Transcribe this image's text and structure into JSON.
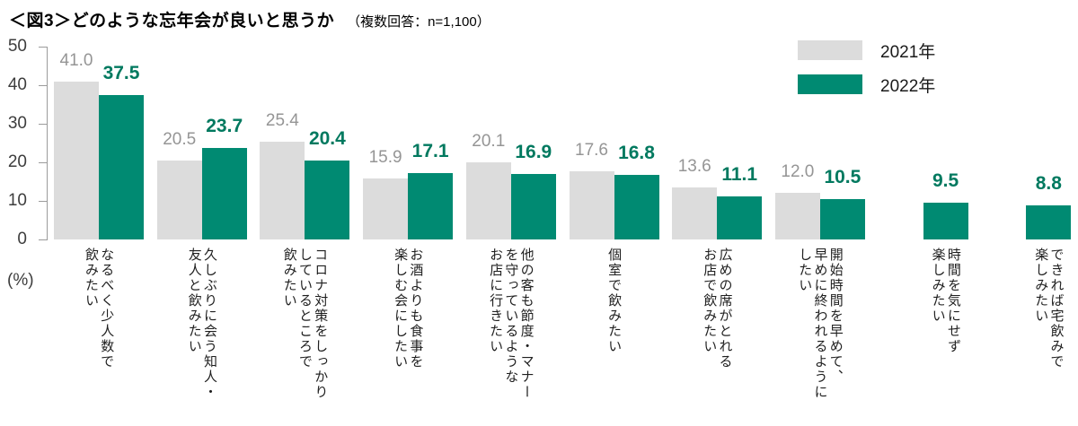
{
  "title": "＜図3＞どのような忘年会が良いと思うか",
  "subtitle": "（複数回答：n=1,100）",
  "legend": [
    {
      "label": "2021年",
      "color": "#dcdcdc"
    },
    {
      "label": "2022年",
      "color": "#008a72"
    }
  ],
  "axis": {
    "unit_label": "(%)",
    "ticks": [
      0,
      10,
      20,
      30,
      40,
      50
    ]
  },
  "chart_data": {
    "type": "bar",
    "title": "＜図3＞どのような忘年会が良いと思うか（複数回答：n=1,100）",
    "xlabel": "",
    "ylabel": "(%)",
    "ylim": [
      0,
      50
    ],
    "grid": false,
    "legend_position": "top-right",
    "categories": [
      "なるべく少人数で\n飲みたい",
      "久しぶりに会う知人・\n友人と飲みたい",
      "コロナ対策をしっかり\nしているところで\n飲みたい",
      "お酒よりも食事を\n楽しむ会にしたい",
      "他の客も節度・マナー\nを守っているような\nお店に行きたい",
      "個室で飲みたい",
      "広めの席がとれる\nお店で飲みたい",
      "開始時間を早めて、\n早めに終われるように\nしたい",
      "時間を気にせず\n楽しみたい",
      "できれば宅飲みで\n楽しみたい"
    ],
    "series": [
      {
        "name": "2021年",
        "color": "#dcdcdc",
        "label_color": "#959595",
        "values": [
          41.0,
          20.5,
          25.4,
          15.9,
          20.1,
          17.6,
          13.6,
          12.0,
          null,
          null
        ]
      },
      {
        "name": "2022年",
        "color": "#008a72",
        "label_color": "#00795f",
        "values": [
          37.5,
          23.7,
          20.4,
          17.1,
          16.9,
          16.8,
          11.1,
          10.5,
          9.5,
          8.8
        ]
      }
    ]
  }
}
